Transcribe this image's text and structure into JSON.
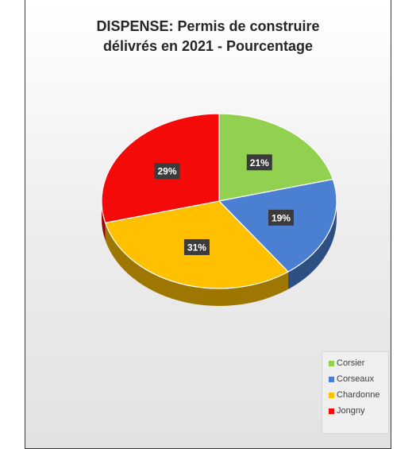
{
  "chart_data": {
    "type": "pie",
    "title_line1": "DISPENSE: Permis de construire",
    "title_line2": "délivrés en 2021 - Pourcentage",
    "slices": [
      {
        "label": "Corsier",
        "value": 21,
        "display": "21%",
        "color": "#92d050"
      },
      {
        "label": "Corseaux",
        "value": 19,
        "display": "19%",
        "color": "#4a7fd1"
      },
      {
        "label": "Chardonne",
        "value": 31,
        "display": "31%",
        "color": "#ffc000"
      },
      {
        "label": "Jongny",
        "value": 29,
        "display": "29%",
        "color": "#f50a0a"
      }
    ],
    "legend_position": "bottom-right",
    "style": "3d"
  }
}
